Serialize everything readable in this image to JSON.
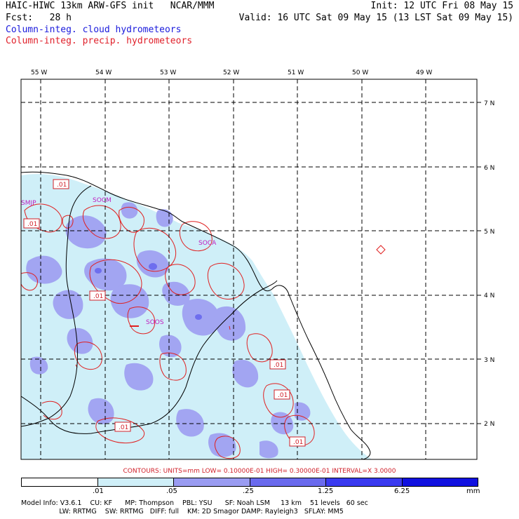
{
  "header": {
    "model_title": "HAIC-HIWC 13km ARW-GFS init   NCAR/MMM",
    "init_time": "Init: 12 UTC Fri 08 May 15",
    "forecast": "Fcst:   28 h",
    "valid_time": "Valid: 16 UTC Sat 09 May 15 (13 LST Sat 09 May 15)",
    "field_cloud": "Column-integ. cloud hydrometeors",
    "field_precip": "Column-integ. precip. hydrometeors"
  },
  "map": {
    "lon_labels": [
      "55 W",
      "54 W",
      "53 W",
      "52 W",
      "51 W",
      "50 W",
      "49 W"
    ],
    "lat_labels": [
      "7 N",
      "6 N",
      "5 N",
      "4 N",
      "3 N",
      "2 N"
    ],
    "cities": [
      "SMJP",
      "SOCM",
      "SOCA",
      "SOOS"
    ],
    "contour_value_label": ".01",
    "colors": {
      "shade1": "#cfeff8",
      "shade2": "#9a9cf2",
      "shade3": "#6a6aee",
      "shade4": "#3a3af0",
      "shade5": "#1010e0",
      "precip_contour": "#e02020",
      "coast": "#000000"
    }
  },
  "contours_line": "CONTOURS:  UNITS=mm  LOW= 0.10000E-01  HIGH= 0.30000E-01  INTERVAL=X  3.0000",
  "colorbar": {
    "ticks": [
      ".01",
      ".05",
      ".25",
      "1.25",
      "6.25"
    ],
    "unit": "mm"
  },
  "model_info": {
    "line1": "Model Info: V3.6.1    CU: KF      MP: Thompson    PBL: YSU      SF: Noah LSM     13 km    51 levels   60 sec",
    "line2": "                  LW: RRTMG    SW: RRTMG   DIFF: full    KM: 2D Smagor DAMP: Rayleigh3   SFLAY: MM5"
  }
}
